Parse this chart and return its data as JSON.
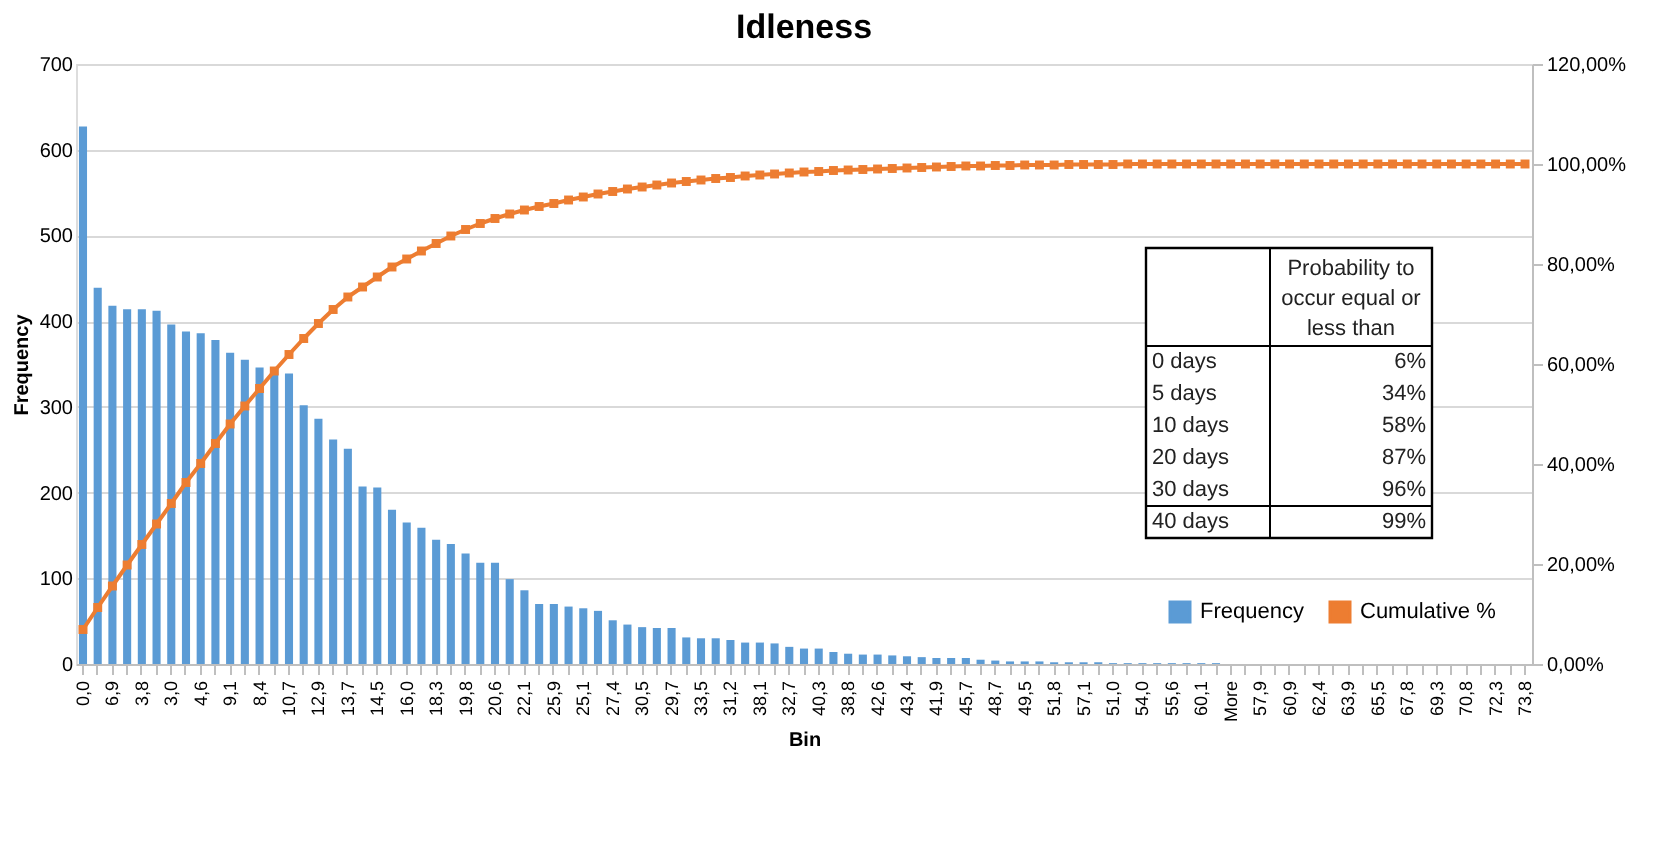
{
  "chart_data": {
    "type": "bar",
    "title": "Idleness",
    "xlabel": "Bin",
    "ylabel": "Frequency",
    "categories": [
      "0,0",
      null,
      "6,9",
      null,
      "3,8",
      null,
      "3,0",
      null,
      "4,6",
      null,
      "9,1",
      null,
      "8,4",
      null,
      "10,7",
      null,
      "12,9",
      null,
      "13,7",
      null,
      "14,5",
      null,
      "16,0",
      null,
      "18,3",
      null,
      "19,8",
      null,
      "20,6",
      null,
      "22,1",
      null,
      "25,9",
      null,
      "25,1",
      null,
      "27,4",
      null,
      "30,5",
      null,
      "29,7",
      null,
      "33,5",
      null,
      "31,2",
      null,
      "38,1",
      null,
      "32,7",
      null,
      "40,3",
      null,
      "38,8",
      null,
      "42,6",
      null,
      "43,4",
      null,
      "41,9",
      null,
      "45,7",
      null,
      "48,7",
      null,
      "49,5",
      null,
      "51,8",
      null,
      "57,1",
      null,
      "51,0",
      null,
      "54,0",
      null,
      "55,6",
      null,
      "60,1",
      null,
      "More",
      null,
      "57,9",
      null,
      "60,9",
      null,
      "62,4",
      null,
      "63,9",
      null,
      "65,5",
      null,
      "67,8",
      null,
      "69,3",
      null,
      "70,8",
      null,
      "72,3",
      null,
      "73,8"
    ],
    "series": [
      {
        "name": "Frequency",
        "color": "#5b9bd5",
        "values": [
          627,
          439,
          418,
          414,
          414,
          412,
          396,
          388,
          386,
          378,
          363,
          355,
          346,
          345,
          339,
          302,
          286,
          262,
          251,
          207,
          206,
          180,
          165,
          159,
          145,
          140,
          129,
          118,
          118,
          99,
          86,
          70,
          70,
          67,
          65,
          62,
          51,
          46,
          43,
          42,
          42,
          31,
          30,
          30,
          28,
          25,
          25,
          24,
          20,
          18,
          18,
          14,
          12,
          11,
          11,
          10,
          9,
          8,
          7,
          7,
          7,
          5,
          4,
          3,
          3,
          3,
          2,
          2,
          2,
          2,
          1,
          1,
          1,
          1,
          1,
          1,
          1,
          1,
          0,
          0,
          0,
          0,
          0,
          0,
          0,
          0,
          0,
          0,
          0,
          0,
          0,
          0,
          0,
          0,
          0,
          0,
          0,
          0,
          0
        ]
      },
      {
        "name": "Cumulative %",
        "type": "line",
        "axis": "y2",
        "color": "#ed7d31",
        "marker": "square",
        "values": [
          6.9,
          11.3,
          15.6,
          19.8,
          23.9,
          28,
          32.1,
          36.3,
          40.1,
          44.1,
          48,
          51.6,
          55.1,
          58.6,
          61.9,
          65.1,
          68.1,
          70.9,
          73.4,
          75.4,
          77.4,
          79.4,
          81,
          82.6,
          84.1,
          85.6,
          86.9,
          88.1,
          89.1,
          90,
          90.8,
          91.5,
          92.1,
          92.8,
          93.4,
          94,
          94.5,
          95,
          95.4,
          95.8,
          96.2,
          96.5,
          96.8,
          97.1,
          97.3,
          97.6,
          97.8,
          98,
          98.2,
          98.4,
          98.5,
          98.7,
          98.8,
          98.9,
          99,
          99.1,
          99.2,
          99.3,
          99.4,
          99.5,
          99.6,
          99.6,
          99.7,
          99.7,
          99.8,
          99.8,
          99.8,
          99.9,
          99.9,
          99.9,
          99.9,
          100,
          100,
          100,
          100,
          100,
          100,
          100,
          100,
          100,
          100,
          100,
          100,
          100,
          100,
          100,
          100,
          100,
          100,
          100,
          100,
          100,
          100,
          100,
          100,
          100,
          100,
          100,
          100
        ]
      }
    ],
    "ylim": [
      0,
      700
    ],
    "yticks": [
      0,
      100,
      200,
      300,
      400,
      500,
      600,
      700
    ],
    "y2lim": [
      0,
      120
    ],
    "y2ticks": [
      {
        "value": 0,
        "label": "0,00%"
      },
      {
        "value": 20,
        "label": "20,00%"
      },
      {
        "value": 40,
        "label": "40,00%"
      },
      {
        "value": 60,
        "label": "60,00%"
      },
      {
        "value": 80,
        "label": "80,00%"
      },
      {
        "value": 100,
        "label": "100,00%"
      },
      {
        "value": 120,
        "label": "120,00%"
      }
    ],
    "grid": "y",
    "legend": "bottom right",
    "line_style": "solid",
    "annotations": [
      "Probability to occur equal or less than",
      "0 days",
      "6%",
      "5 days",
      "34%",
      "10 days",
      "58%",
      "20 days",
      "87%",
      "30 days",
      "96%",
      "40 days",
      "99%"
    ]
  }
}
